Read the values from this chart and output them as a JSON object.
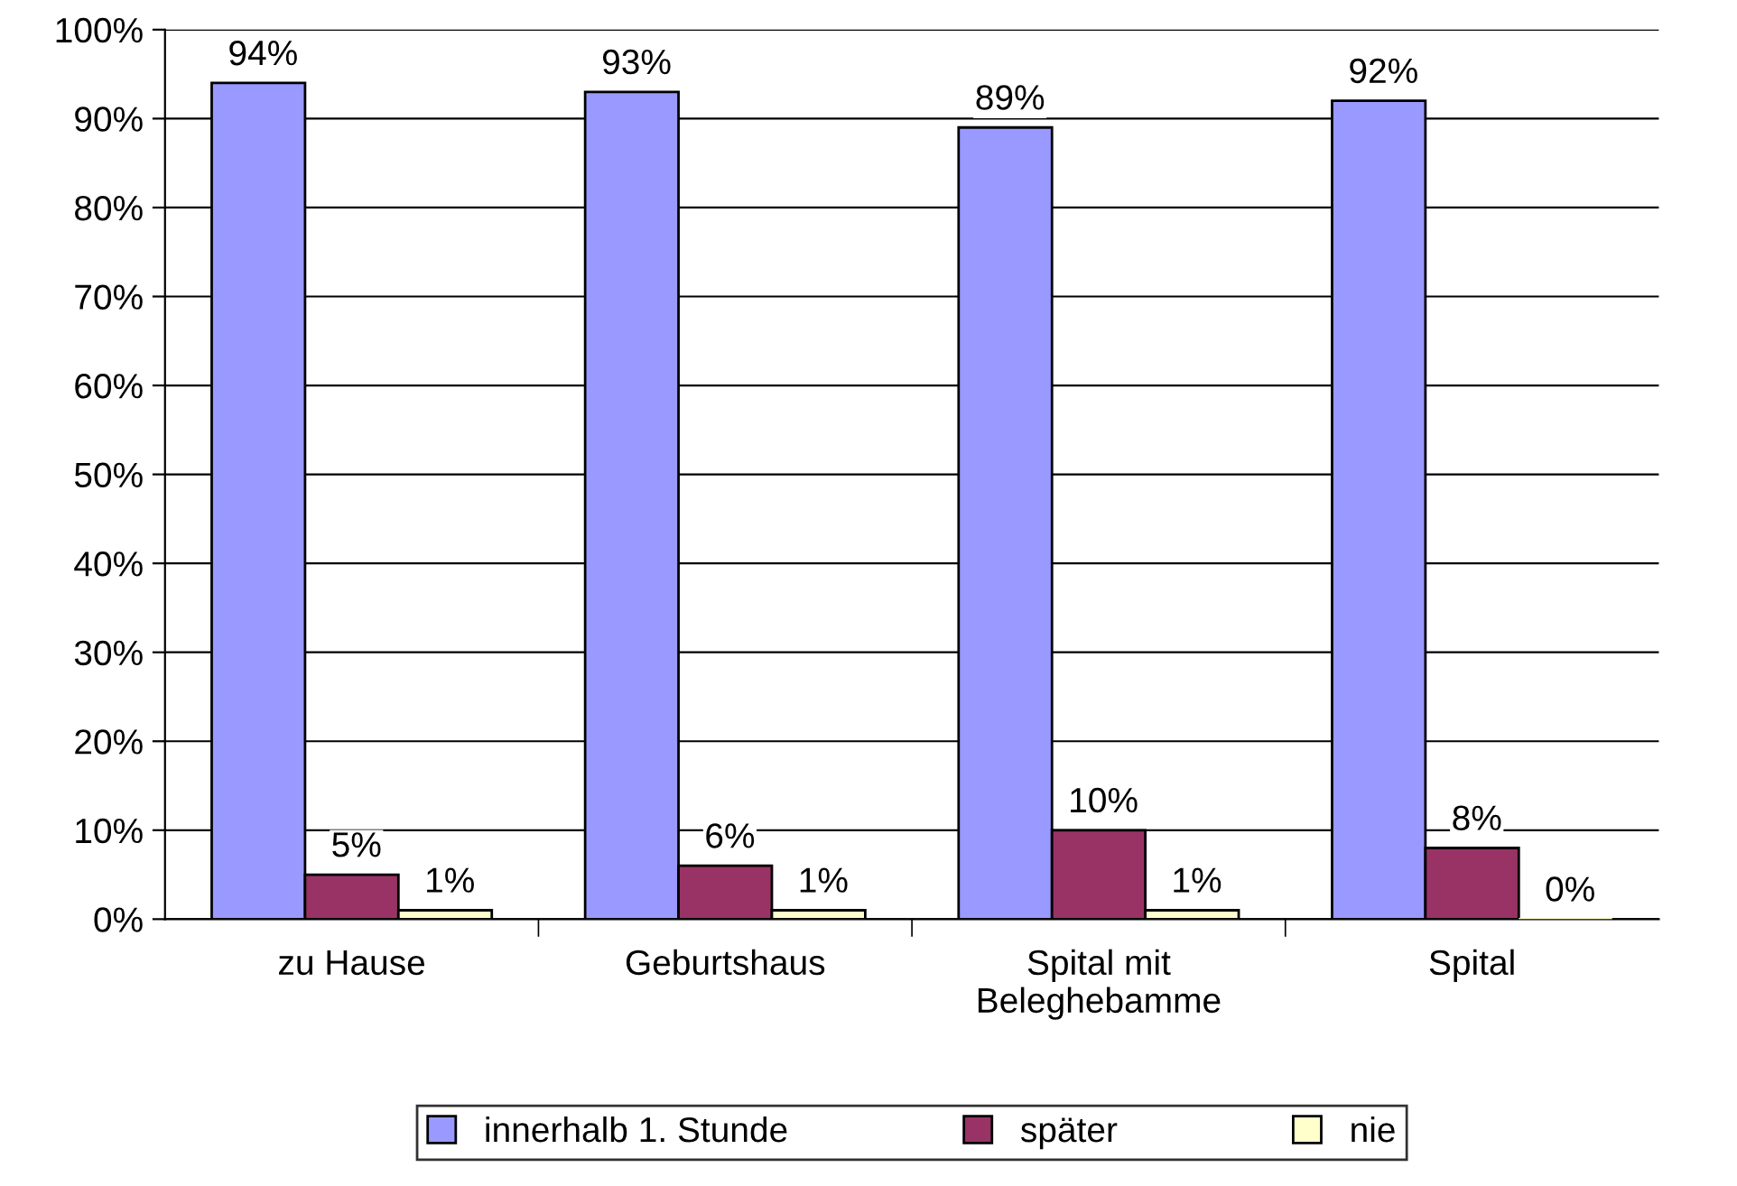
{
  "chart_data": {
    "type": "bar",
    "categories": [
      "zu Hause",
      "Geburtshaus",
      "Spital mit\nBeleghebamme",
      "Spital"
    ],
    "series": [
      {
        "name": "innerhalb 1. Stunde",
        "color": "#9999ff",
        "values": [
          94,
          93,
          89,
          92
        ],
        "value_labels": [
          "94%",
          "93%",
          "89%",
          "92%"
        ]
      },
      {
        "name": "später",
        "color": "#993366",
        "values": [
          5,
          6,
          10,
          8
        ],
        "value_labels": [
          "5%",
          "6%",
          "10%",
          "8%"
        ]
      },
      {
        "name": "nie",
        "color": "#ffffcc",
        "values": [
          1,
          1,
          1,
          0
        ],
        "value_labels": [
          "1%",
          "1%",
          "1%",
          "0%"
        ]
      }
    ],
    "ylim": [
      0,
      100
    ],
    "yticks": [
      {
        "value": 0,
        "label": "0%"
      },
      {
        "value": 10,
        "label": "10%"
      },
      {
        "value": 20,
        "label": "20%"
      },
      {
        "value": 30,
        "label": "30%"
      },
      {
        "value": 40,
        "label": "40%"
      },
      {
        "value": 50,
        "label": "50%"
      },
      {
        "value": 60,
        "label": "60%"
      },
      {
        "value": 70,
        "label": "70%"
      },
      {
        "value": 80,
        "label": "80%"
      },
      {
        "value": 90,
        "label": "90%"
      },
      {
        "value": 100,
        "label": "100%"
      }
    ],
    "grid": "y",
    "legend": "bottom"
  }
}
